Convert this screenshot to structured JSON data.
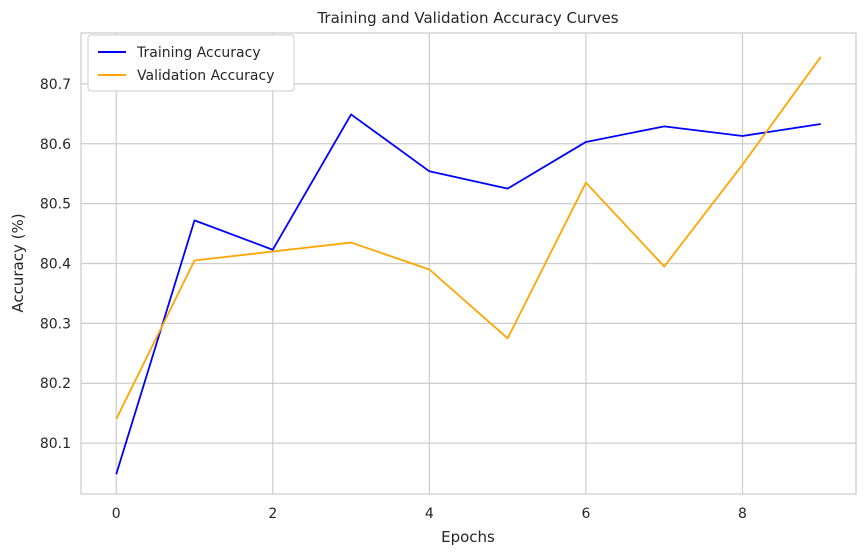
{
  "chart_data": {
    "type": "line",
    "title": "Training and Validation Accuracy Curves",
    "xlabel": "Epochs",
    "ylabel": "Accuracy (%)",
    "x": [
      0,
      1,
      2,
      3,
      4,
      5,
      6,
      7,
      8,
      9
    ],
    "xlim": [
      -0.45,
      9.45
    ],
    "ylim": [
      80.015,
      80.785
    ],
    "xticks": [
      0,
      2,
      4,
      6,
      8
    ],
    "yticks": [
      80.1,
      80.2,
      80.3,
      80.4,
      80.5,
      80.6,
      80.7
    ],
    "xtick_labels": [
      "0",
      "2",
      "4",
      "6",
      "8"
    ],
    "ytick_labels": [
      "80.1",
      "80.2",
      "80.3",
      "80.4",
      "80.5",
      "80.6",
      "80.7"
    ],
    "grid": true,
    "legend_position": "upper-left",
    "series": [
      {
        "name": "Training Accuracy",
        "color": "#0000ff",
        "values": [
          80.048,
          80.472,
          80.423,
          80.649,
          80.554,
          80.525,
          80.603,
          80.629,
          80.613,
          80.633
        ]
      },
      {
        "name": "Validation Accuracy",
        "color": "#ffa500",
        "values": [
          80.14,
          80.405,
          80.42,
          80.435,
          80.39,
          80.275,
          80.535,
          80.395,
          80.565,
          80.745
        ]
      }
    ]
  }
}
